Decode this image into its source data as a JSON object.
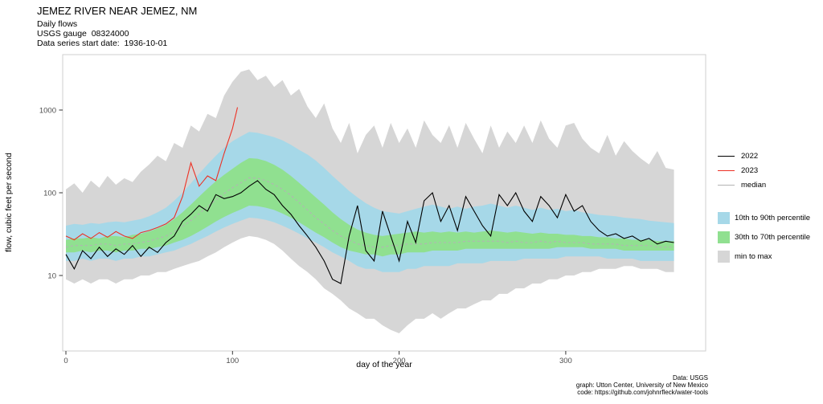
{
  "header": {
    "title": "JEMEZ RIVER NEAR JEMEZ, NM",
    "subtitle_lines": [
      "Daily flows",
      "USGS gauge  08324000",
      "Data series start date:  1936-10-01"
    ]
  },
  "legend": {
    "lines": [
      {
        "label": "2022",
        "color": "#000000"
      },
      {
        "label": "2023",
        "color": "#ed3124"
      },
      {
        "label": "median",
        "color": "#b3b3b3"
      }
    ],
    "fills": [
      {
        "label": "10th to 90th percentile",
        "color": "#a6d8e8"
      },
      {
        "label": "30th to 70th percentile",
        "color": "#90e090"
      },
      {
        "label": "min to max",
        "color": "#d6d6d6"
      }
    ]
  },
  "caption_lines": [
    "Data: USGS",
    "graph: Utton Center, University of New Mexico",
    "code: https://github.com/johnrfleck/water-tools"
  ],
  "chart_data": {
    "type": "line",
    "title": "JEMEZ RIVER NEAR JEMEZ, NM",
    "xlabel": "day of the year",
    "ylabel": "flow, cubic feet per second",
    "y_scale": "log10",
    "xlim": [
      0,
      365
    ],
    "ylim": [
      1.5,
      4500
    ],
    "x_ticks": [
      0,
      100,
      200,
      300
    ],
    "y_ticks": [
      10,
      100,
      1000
    ],
    "grid": false,
    "legend_position": "right",
    "x_days": [
      0,
      5,
      10,
      15,
      20,
      25,
      30,
      35,
      40,
      45,
      50,
      55,
      60,
      65,
      70,
      75,
      80,
      85,
      90,
      95,
      100,
      105,
      110,
      115,
      120,
      125,
      130,
      135,
      140,
      145,
      150,
      155,
      160,
      165,
      170,
      175,
      180,
      185,
      190,
      195,
      200,
      205,
      210,
      215,
      220,
      225,
      230,
      235,
      240,
      245,
      250,
      255,
      260,
      265,
      270,
      275,
      280,
      285,
      290,
      295,
      300,
      305,
      310,
      315,
      320,
      325,
      330,
      335,
      340,
      345,
      350,
      355,
      360,
      365
    ],
    "bands": [
      {
        "name": "min to max",
        "color": "#d6d6d6",
        "upper": [
          110,
          130,
          100,
          140,
          115,
          160,
          125,
          150,
          135,
          180,
          220,
          280,
          240,
          400,
          350,
          650,
          550,
          900,
          800,
          1500,
          2200,
          2900,
          3100,
          2300,
          2600,
          1900,
          2300,
          1500,
          1800,
          1100,
          800,
          1200,
          600,
          400,
          700,
          300,
          500,
          650,
          350,
          700,
          400,
          600,
          350,
          750,
          500,
          400,
          650,
          350,
          700,
          450,
          300,
          650,
          350,
          550,
          400,
          650,
          400,
          750,
          450,
          350,
          650,
          700,
          450,
          350,
          300,
          500,
          280,
          420,
          320,
          260,
          220,
          320,
          200,
          190
        ],
        "lower": [
          9,
          8,
          9,
          8,
          9,
          9,
          8,
          9,
          9,
          10,
          10,
          11,
          11,
          12,
          13,
          14,
          15,
          17,
          19,
          22,
          25,
          28,
          30,
          29,
          27,
          24,
          20,
          16,
          13,
          11,
          9,
          7,
          6,
          5,
          4,
          3.5,
          3,
          3,
          2.5,
          2.2,
          2,
          2.5,
          3,
          3,
          3.5,
          3,
          3.5,
          4,
          4,
          4.5,
          5,
          5,
          6,
          6,
          7,
          7,
          8,
          8,
          9,
          9,
          10,
          10,
          11,
          11,
          12,
          12,
          12,
          13,
          13,
          12,
          12,
          12,
          11,
          11
        ]
      },
      {
        "name": "10th to 90th percentile",
        "color": "#a6d8e8",
        "upper": [
          40,
          42,
          41,
          43,
          42,
          44,
          45,
          44,
          46,
          48,
          52,
          58,
          66,
          80,
          100,
          130,
          170,
          220,
          280,
          350,
          420,
          480,
          545,
          530,
          500,
          470,
          430,
          380,
          330,
          290,
          245,
          200,
          160,
          130,
          105,
          88,
          75,
          66,
          60,
          58,
          56,
          60,
          64,
          68,
          72,
          68,
          64,
          68,
          64,
          68,
          70,
          74,
          70,
          66,
          70,
          66,
          62,
          66,
          62,
          64,
          60,
          62,
          58,
          56,
          54,
          53,
          52,
          50,
          49,
          48,
          46,
          45,
          44,
          43
        ],
        "lower": [
          15,
          15,
          16,
          15,
          16,
          16,
          15,
          16,
          16,
          17,
          17,
          18,
          19,
          20,
          22,
          24,
          27,
          30,
          34,
          38,
          42,
          46,
          50,
          49,
          47,
          44,
          40,
          36,
          32,
          28,
          25,
          22,
          19,
          17,
          15,
          13,
          12,
          12,
          11,
          11,
          11,
          12,
          12,
          13,
          13,
          13,
          13,
          14,
          14,
          14,
          14,
          15,
          15,
          15,
          15,
          16,
          16,
          16,
          16,
          16,
          17,
          17,
          17,
          17,
          17,
          16,
          16,
          16,
          16,
          15,
          15,
          15,
          15,
          15
        ]
      },
      {
        "name": "30th to 70th percentile",
        "color": "#90e090",
        "upper": [
          27,
          28,
          28,
          29,
          28,
          30,
          30,
          29,
          31,
          32,
          34,
          37,
          41,
          48,
          58,
          72,
          90,
          112,
          138,
          165,
          195,
          230,
          262,
          258,
          242,
          218,
          190,
          160,
          132,
          108,
          88,
          72,
          58,
          48,
          41,
          36,
          33,
          31,
          30,
          31,
          32,
          33,
          34,
          33,
          34,
          33,
          34,
          33,
          34,
          33,
          34,
          35,
          34,
          33,
          34,
          33,
          32,
          33,
          32,
          32,
          31,
          31,
          30,
          30,
          29,
          29,
          28,
          28,
          27,
          27,
          27,
          26,
          26,
          26
        ],
        "lower": [
          19,
          19,
          20,
          19,
          20,
          20,
          19,
          20,
          20,
          21,
          21,
          22,
          23,
          25,
          27,
          30,
          34,
          39,
          45,
          51,
          57,
          63,
          70,
          69,
          66,
          62,
          56,
          50,
          44,
          38,
          33,
          29,
          25,
          22,
          20,
          19,
          18,
          18,
          17,
          18,
          18,
          19,
          19,
          19,
          20,
          20,
          20,
          20,
          21,
          21,
          21,
          21,
          21,
          21,
          21,
          21,
          21,
          21,
          21,
          22,
          22,
          22,
          22,
          21,
          21,
          21,
          21,
          20,
          20,
          20,
          20,
          20,
          20,
          20
        ]
      }
    ],
    "series": [
      {
        "name": "median",
        "color": "#b3b3b3",
        "dash": true,
        "values": [
          22,
          23,
          23,
          23,
          24,
          24,
          23,
          24,
          24,
          25,
          26,
          28,
          30,
          34,
          39,
          46,
          56,
          68,
          82,
          98,
          115,
          132,
          152,
          150,
          140,
          126,
          110,
          93,
          76,
          62,
          50,
          42,
          35,
          30,
          27,
          24,
          23,
          22,
          22,
          23,
          23,
          24,
          24,
          24,
          25,
          25,
          25,
          25,
          26,
          26,
          26,
          26,
          26,
          25,
          26,
          25,
          25,
          26,
          25,
          26,
          25,
          25,
          25,
          24,
          24,
          24,
          24,
          23,
          23,
          23,
          23,
          22,
          22,
          22
        ]
      },
      {
        "name": "2022",
        "color": "#000000",
        "values": [
          18,
          12,
          20,
          16,
          22,
          17,
          21,
          18,
          23,
          17,
          22,
          19,
          25,
          30,
          45,
          55,
          70,
          60,
          95,
          85,
          90,
          100,
          120,
          140,
          110,
          95,
          70,
          55,
          40,
          30,
          22,
          15,
          9,
          8,
          30,
          70,
          20,
          15,
          60,
          30,
          15,
          45,
          25,
          80,
          100,
          45,
          70,
          35,
          90,
          60,
          40,
          30,
          95,
          70,
          100,
          60,
          45,
          90,
          70,
          50,
          95,
          60,
          70,
          45,
          35,
          30,
          32,
          28,
          30,
          26,
          28,
          24,
          26,
          25
        ]
      },
      {
        "name": "2023",
        "color": "#ed3124",
        "x": [
          0,
          5,
          10,
          15,
          20,
          25,
          30,
          35,
          40,
          45,
          50,
          55,
          60,
          65,
          70,
          75,
          80,
          85,
          90,
          95,
          100,
          103
        ],
        "values": [
          30,
          27,
          32,
          28,
          33,
          29,
          34,
          30,
          28,
          33,
          35,
          38,
          42,
          50,
          90,
          230,
          120,
          160,
          140,
          300,
          600,
          1080
        ]
      }
    ]
  }
}
